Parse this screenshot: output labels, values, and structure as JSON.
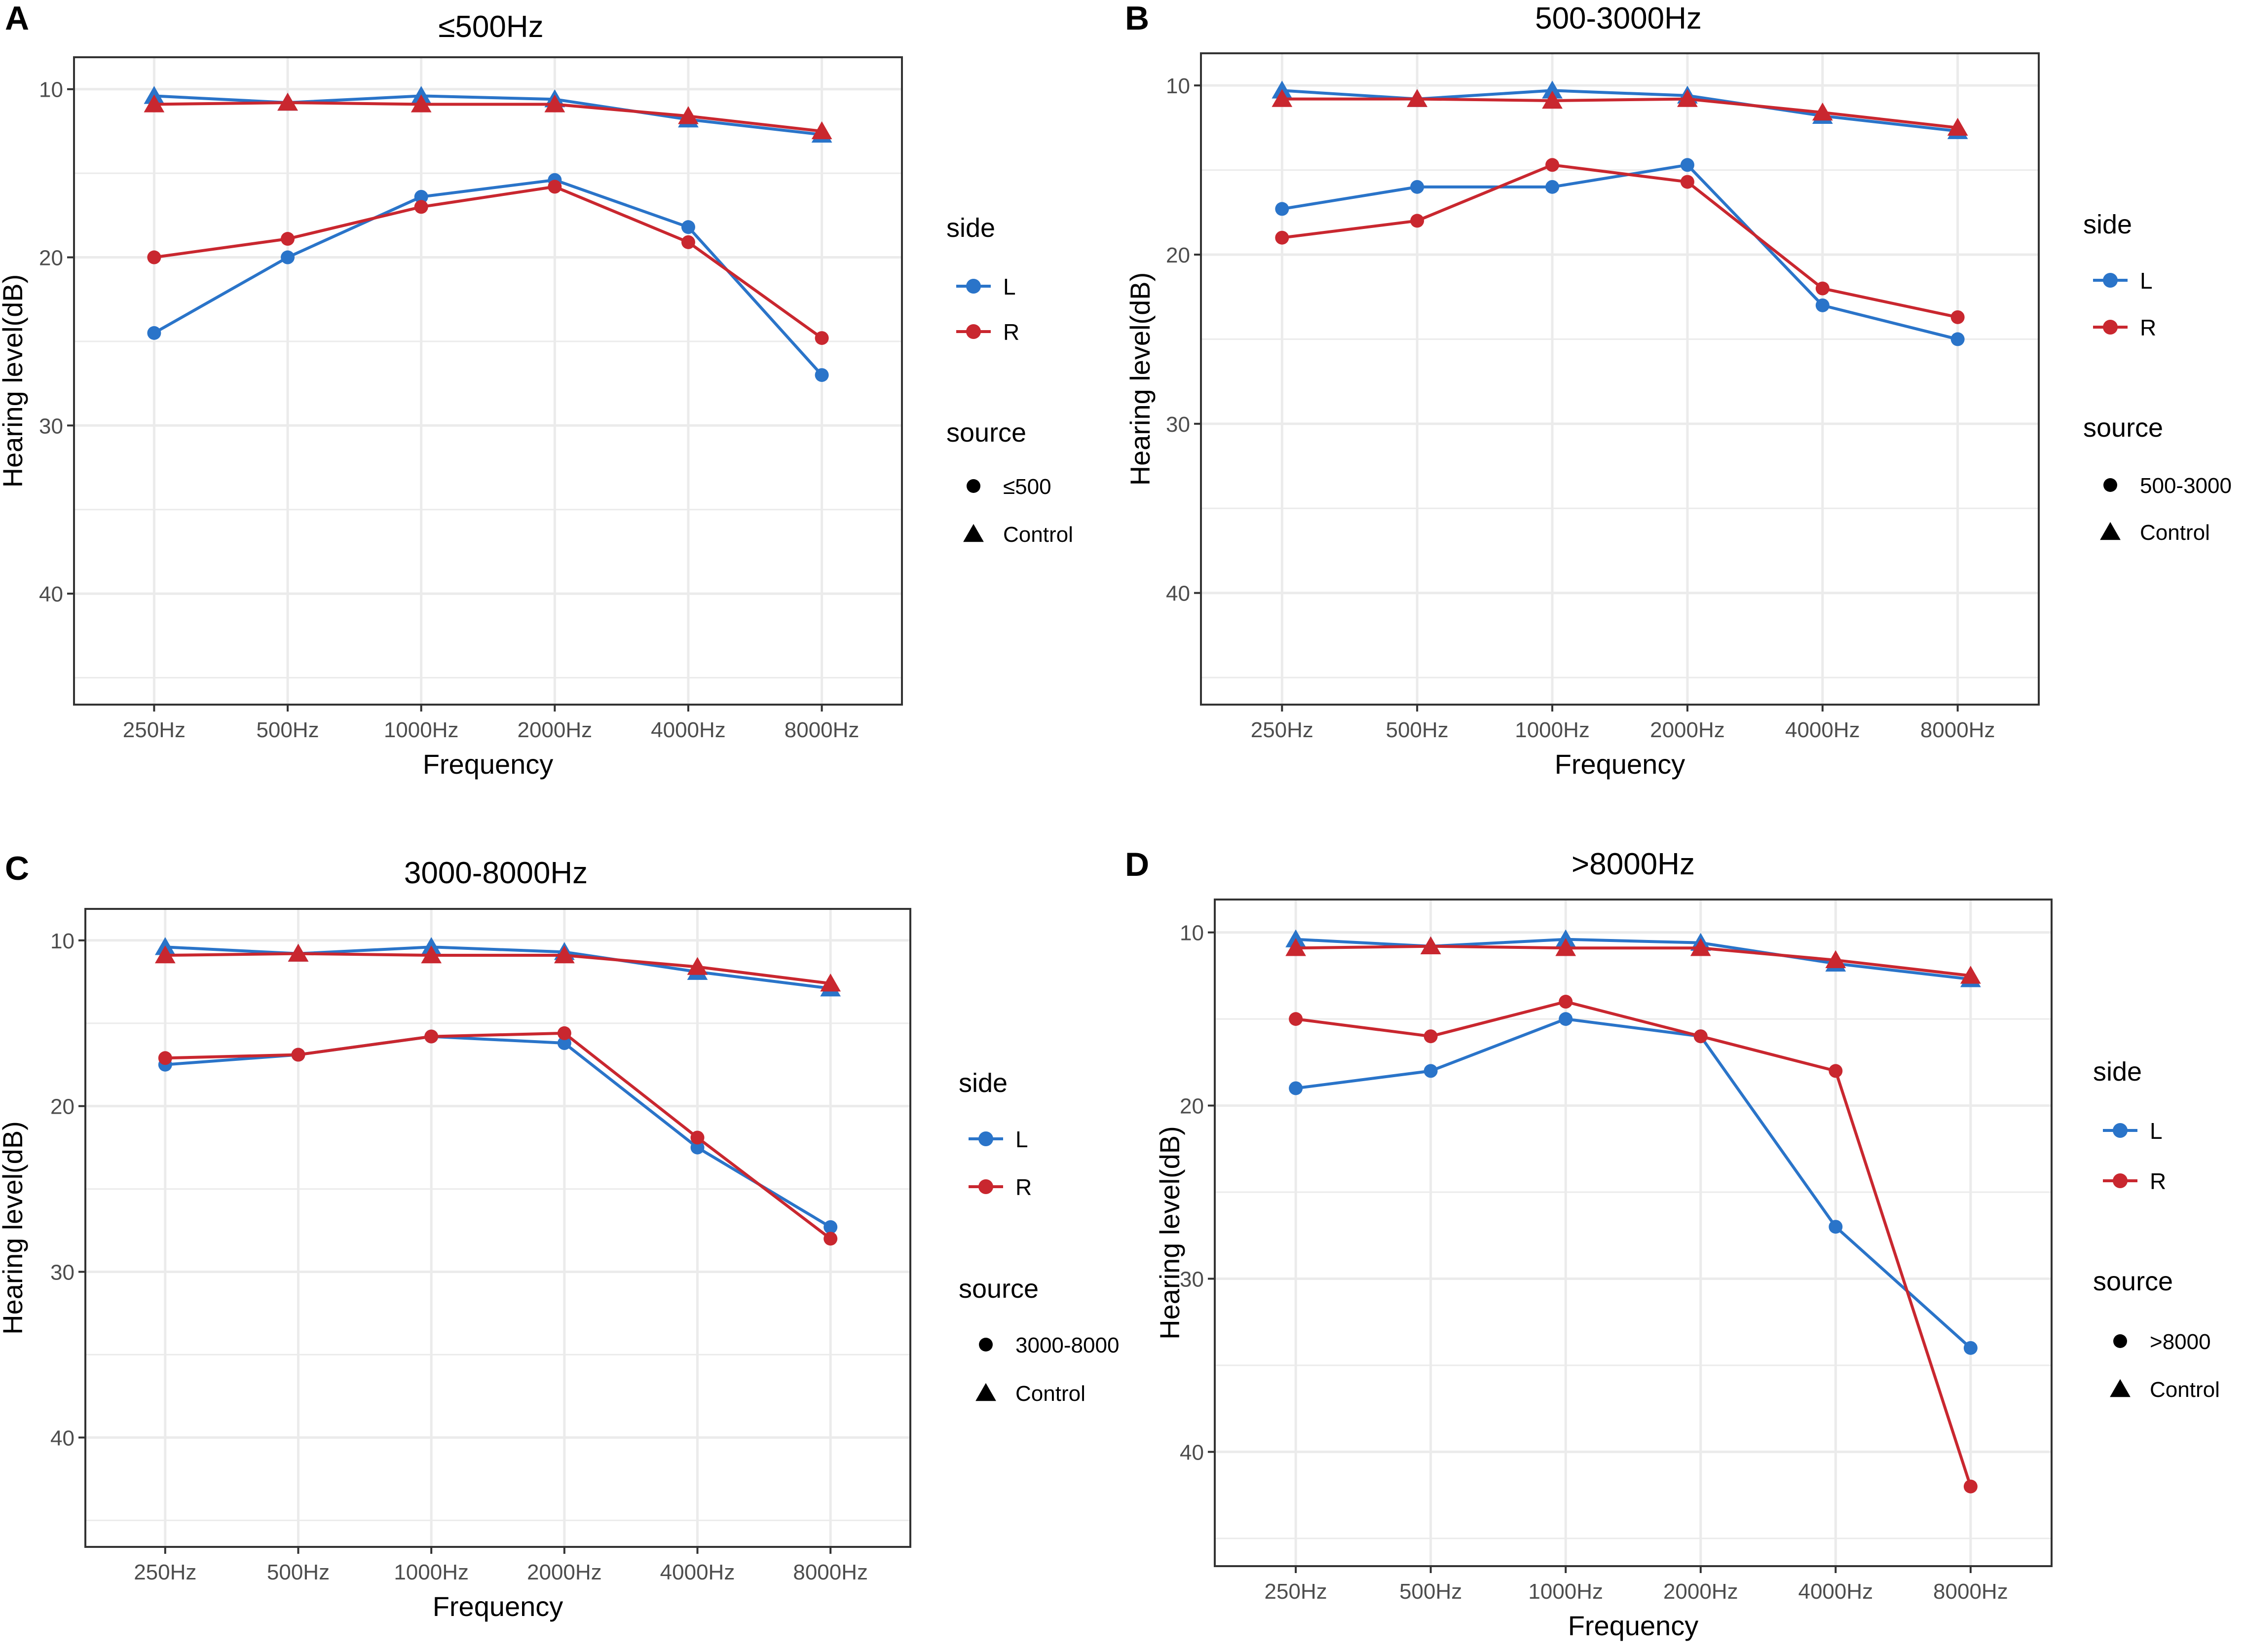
{
  "figure": {
    "xlabel": "Frequency",
    "ylabel": "Hearing level(dB)",
    "legend": {
      "side_title": "side",
      "source_title": "source",
      "side_items": [
        {
          "label": "L",
          "color": "#2A74C9"
        },
        {
          "label": "R",
          "color": "#C9272F"
        }
      ],
      "control_label": "Control"
    },
    "colors": {
      "L": "#2A74C9",
      "R": "#C9272F",
      "grid": "#EBEBEB",
      "border": "#333333",
      "text": "#000000",
      "tick_text": "#4D4D4D"
    }
  },
  "chart_data": [
    {
      "panel": "A",
      "type": "line",
      "title": "≤500Hz",
      "source_label": "≤500",
      "xlabel": "Frequency",
      "ylabel": "Hearing level(dB)",
      "categories": [
        "250Hz",
        "500Hz",
        "1000Hz",
        "2000Hz",
        "4000Hz",
        "8000Hz"
      ],
      "y_ticks": [
        10,
        20,
        30,
        40
      ],
      "ylim": [
        46.6,
        8.1
      ],
      "y_reversed": true,
      "legend_position": "right",
      "series": [
        {
          "name": "L",
          "source": "≤500",
          "values": [
            24.5,
            20.0,
            16.4,
            15.4,
            18.2,
            27.0
          ]
        },
        {
          "name": "R",
          "source": "≤500",
          "values": [
            20.0,
            18.9,
            17.0,
            15.8,
            19.1,
            24.8
          ]
        },
        {
          "name": "L",
          "source": "Control",
          "values": [
            10.4,
            10.8,
            10.4,
            10.6,
            11.8,
            12.7
          ]
        },
        {
          "name": "R",
          "source": "Control",
          "values": [
            10.9,
            10.8,
            10.9,
            10.9,
            11.6,
            12.5
          ]
        }
      ]
    },
    {
      "panel": "B",
      "type": "line",
      "title": "500-3000Hz",
      "source_label": "500-3000",
      "xlabel": "Frequency",
      "ylabel": "Hearing level(dB)",
      "categories": [
        "250Hz",
        "500Hz",
        "1000Hz",
        "2000Hz",
        "4000Hz",
        "8000Hz"
      ],
      "y_ticks": [
        10,
        20,
        30,
        40
      ],
      "ylim": [
        46.6,
        8.1
      ],
      "y_reversed": true,
      "legend_position": "right",
      "series": [
        {
          "name": "L",
          "source": "500-3000",
          "values": [
            17.3,
            16.0,
            16.0,
            14.7,
            23.0,
            25.0
          ]
        },
        {
          "name": "R",
          "source": "500-3000",
          "values": [
            19.0,
            18.0,
            14.7,
            15.7,
            22.0,
            23.7
          ]
        },
        {
          "name": "L",
          "source": "Control",
          "values": [
            10.3,
            10.8,
            10.3,
            10.6,
            11.8,
            12.7
          ]
        },
        {
          "name": "R",
          "source": "Control",
          "values": [
            10.8,
            10.8,
            10.9,
            10.8,
            11.6,
            12.5
          ]
        }
      ]
    },
    {
      "panel": "C",
      "type": "line",
      "title": "3000-8000Hz",
      "source_label": "3000-8000",
      "xlabel": "Frequency",
      "ylabel": "Hearing level(dB)",
      "categories": [
        "250Hz",
        "500Hz",
        "1000Hz",
        "2000Hz",
        "4000Hz",
        "8000Hz"
      ],
      "y_ticks": [
        10,
        20,
        30,
        40
      ],
      "ylim": [
        46.6,
        8.1
      ],
      "y_reversed": true,
      "legend_position": "right",
      "series": [
        {
          "name": "L",
          "source": "3000-8000",
          "values": [
            17.5,
            16.9,
            15.8,
            16.2,
            22.5,
            27.3
          ]
        },
        {
          "name": "R",
          "source": "3000-8000",
          "values": [
            17.1,
            16.9,
            15.8,
            15.6,
            21.9,
            28.0
          ]
        },
        {
          "name": "L",
          "source": "Control",
          "values": [
            10.4,
            10.8,
            10.4,
            10.7,
            11.9,
            12.9
          ]
        },
        {
          "name": "R",
          "source": "Control",
          "values": [
            10.9,
            10.8,
            10.9,
            10.9,
            11.6,
            12.6
          ]
        }
      ]
    },
    {
      "panel": "D",
      "type": "line",
      "title": ">8000Hz",
      "source_label": ">8000",
      "xlabel": "Frequency",
      "ylabel": "Hearing level(dB)",
      "categories": [
        "250Hz",
        "500Hz",
        "1000Hz",
        "2000Hz",
        "4000Hz",
        "8000Hz"
      ],
      "y_ticks": [
        10,
        20,
        30,
        40
      ],
      "ylim": [
        46.6,
        8.1
      ],
      "y_reversed": true,
      "legend_position": "right",
      "series": [
        {
          "name": "L",
          "source": ">8000",
          "values": [
            19.0,
            18.0,
            15.0,
            16.0,
            27.0,
            34.0
          ]
        },
        {
          "name": "R",
          "source": ">8000",
          "values": [
            15.0,
            16.0,
            14.0,
            16.0,
            18.0,
            42.0
          ]
        },
        {
          "name": "L",
          "source": "Control",
          "values": [
            10.4,
            10.8,
            10.4,
            10.6,
            11.8,
            12.7
          ]
        },
        {
          "name": "R",
          "source": "Control",
          "values": [
            10.9,
            10.8,
            10.9,
            10.9,
            11.6,
            12.5
          ]
        }
      ]
    }
  ]
}
